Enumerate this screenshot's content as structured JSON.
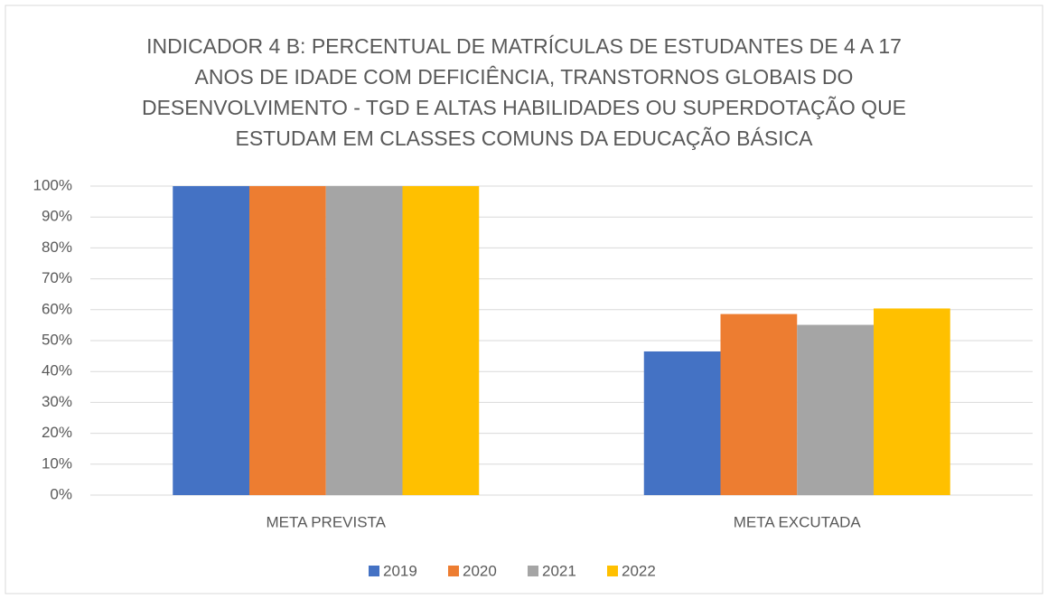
{
  "chart_data": {
    "type": "bar",
    "title": "INDICADOR 4 B: PERCENTUAL DE MATRÍCULAS DE ESTUDANTES DE 4 A 17 ANOS DE IDADE COM DEFICIÊNCIA, TRANSTORNOS GLOBAIS DO DESENVOLVIMENTO - TGD E ALTAS HABILIDADES OU SUPERDOTAÇÃO QUE ESTUDAM EM CLASSES COMUNS DA EDUCAÇÃO BÁSICA",
    "categories": [
      "META PREVISTA",
      "META EXCUTADA"
    ],
    "series": [
      {
        "name": "2019",
        "color": "#4472c4",
        "values": [
          100,
          46.5
        ]
      },
      {
        "name": "2020",
        "color": "#ed7d31",
        "values": [
          100,
          58.6
        ]
      },
      {
        "name": "2021",
        "color": "#a5a5a5",
        "values": [
          100,
          55.1
        ]
      },
      {
        "name": "2022",
        "color": "#ffc000",
        "values": [
          100,
          60.4
        ]
      }
    ],
    "ylim": [
      0,
      100
    ],
    "yticks": [
      {
        "value": 0,
        "label": "0%"
      },
      {
        "value": 10,
        "label": "10%"
      },
      {
        "value": 20,
        "label": "20%"
      },
      {
        "value": 30,
        "label": "30%"
      },
      {
        "value": 40,
        "label": "40%"
      },
      {
        "value": 50,
        "label": "50%"
      },
      {
        "value": 60,
        "label": "60%"
      },
      {
        "value": 70,
        "label": "70%"
      },
      {
        "value": 80,
        "label": "80%"
      },
      {
        "value": 90,
        "label": "90%"
      },
      {
        "value": 100,
        "label": "100%"
      }
    ],
    "grid": true,
    "legend": "bottom"
  }
}
